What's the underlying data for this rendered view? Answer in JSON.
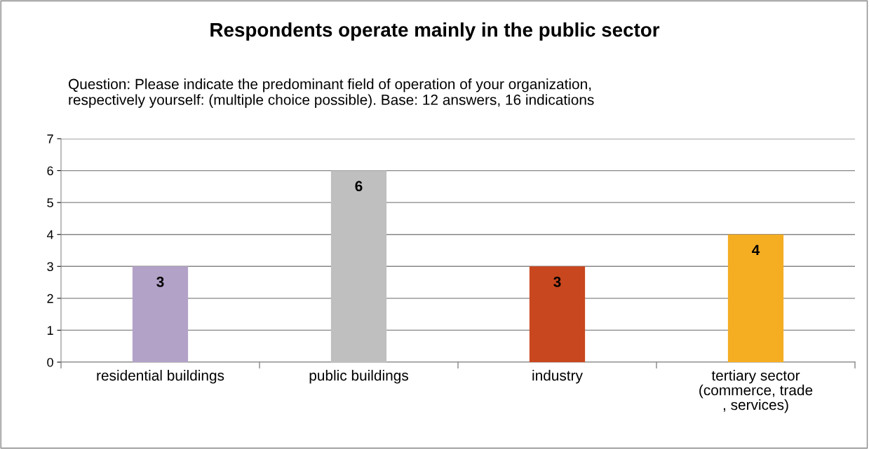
{
  "chart_data": {
    "type": "bar",
    "title": "Respondents operate mainly in the public sector",
    "subtitle": "Question: Please indicate the predominant field of operation of your organization,\nrespectively yourself: (multiple choice possible). Base: 12 answers, 16 indications",
    "categories": [
      "residential buildings",
      "public buildings",
      "industry",
      "tertiary sector\n(commerce, trade\n, services)"
    ],
    "values": [
      3,
      6,
      3,
      4
    ],
    "colors": [
      "#b3a2c7",
      "#bfbfbf",
      "#c9471e",
      "#f5ad22"
    ],
    "ylim": [
      0,
      7
    ],
    "yticks": [
      0,
      1,
      2,
      3,
      4,
      5,
      6,
      7
    ],
    "grid": "y",
    "data_labels": true
  }
}
